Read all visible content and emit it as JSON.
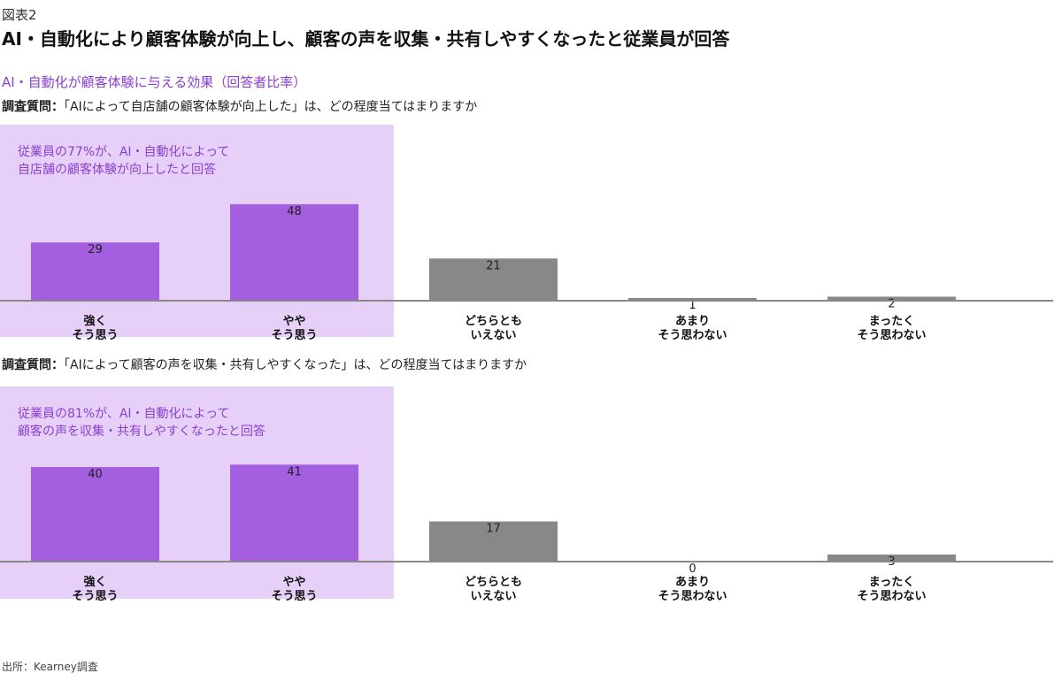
{
  "figure_label": "図表2",
  "title": "AI・自動化により顧客体験が向上し、顧客の声を収集・共有しやすくなったと従業員が回答",
  "subtitle": "AI・自動化が顧客体験に与える効果（回答者比率）",
  "questions": [
    {
      "prefix": "調査質問：",
      "text": "「AIによって自店舗の顧客体験が向上した」は、どの程度当てはまりますか"
    },
    {
      "prefix": "調査質問：",
      "text": "「AIによって顧客の声を収集・共有しやすくなった」は、どの程度当てはまりますか"
    }
  ],
  "colors": {
    "positive": "#a45ee0",
    "neutral": "#888888",
    "highlight": "#e6d0f7",
    "accent_text": "#8a3fd1",
    "axis": "#888888"
  },
  "chart_data": [
    {
      "type": "bar",
      "categories": [
        "強く\nそう思う",
        "やや\nそう思う",
        "どちらとも\nいえない",
        "あまり\nそう思わない",
        "まったく\nそう思わない"
      ],
      "values": [
        29,
        48,
        21,
        1,
        2
      ],
      "highlighted": [
        true,
        true,
        false,
        false,
        false
      ],
      "annotation": [
        "従業員の77%が、AI・自動化によって",
        "自店舗の顧客体験が向上したと回答"
      ],
      "ylim": [
        0,
        55
      ]
    },
    {
      "type": "bar",
      "categories": [
        "強く\nそう思う",
        "やや\nそう思う",
        "どちらとも\nいえない",
        "あまり\nそう思わない",
        "まったく\nそう思わない"
      ],
      "values": [
        40,
        41,
        17,
        0,
        3
      ],
      "highlighted": [
        true,
        true,
        false,
        false,
        false
      ],
      "annotation": [
        "従業員の81%が、AI・自動化によって",
        "顧客の声を収集・共有しやすくなったと回答"
      ],
      "ylim": [
        0,
        46
      ]
    }
  ],
  "source": "出所：Kearney調査"
}
